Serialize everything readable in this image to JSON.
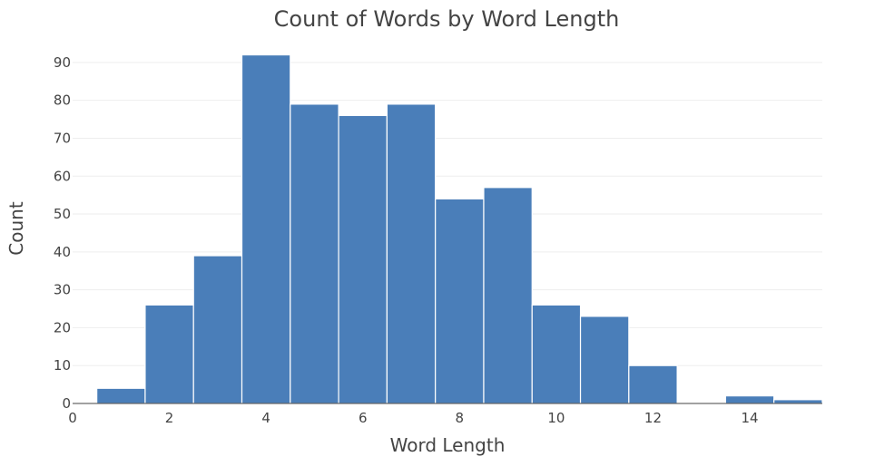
{
  "chart_data": {
    "type": "bar",
    "title": "Count of Words by Word Length",
    "xlabel": "Word Length",
    "ylabel": "Count",
    "x": [
      1,
      2,
      3,
      4,
      5,
      6,
      7,
      8,
      9,
      10,
      11,
      12,
      13,
      14,
      15
    ],
    "values": [
      4,
      26,
      39,
      92,
      79,
      76,
      79,
      54,
      57,
      26,
      23,
      10,
      0,
      2,
      1
    ],
    "xlim": [
      0,
      15.5
    ],
    "ylim": [
      0,
      95
    ],
    "xticks": [
      0,
      2,
      4,
      6,
      8,
      10,
      12,
      14
    ],
    "yticks": [
      0,
      10,
      20,
      30,
      40,
      50,
      60,
      70,
      80,
      90
    ],
    "bar_color": "#4a7eb9",
    "grid": true
  }
}
